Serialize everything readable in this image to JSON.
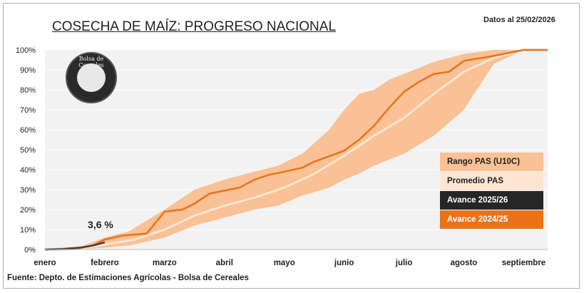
{
  "header": {
    "title": "COSECHA DE MAÍZ: PROGRESO NACIONAL",
    "date": "Datos al 25/02/2026"
  },
  "footer": {
    "source": "Fuente: Depto. de Estimaciones Agrícolas - Bolsa de Cereales"
  },
  "logo": {
    "text": "Bolsa de Cereales"
  },
  "chart_data": {
    "type": "area",
    "x_unit": "month (0 = enero)",
    "xlim": [
      0,
      8.4
    ],
    "ylim": [
      0,
      100
    ],
    "yticks": [
      "0%",
      "10%",
      "20%",
      "30%",
      "40%",
      "50%",
      "60%",
      "70%",
      "80%",
      "90%",
      "100%"
    ],
    "xticks": [
      {
        "label": "enero",
        "x": 0
      },
      {
        "label": "febrero",
        "x": 1
      },
      {
        "label": "marzo",
        "x": 2
      },
      {
        "label": "abril",
        "x": 3
      },
      {
        "label": "mayo",
        "x": 4
      },
      {
        "label": "junio",
        "x": 5
      },
      {
        "label": "julio",
        "x": 6
      },
      {
        "label": "agosto",
        "x": 7
      },
      {
        "label": "septiembre",
        "x": 8
      }
    ],
    "grid": "horizontal",
    "legend_position": "right",
    "annotation": {
      "text": "3,6 %",
      "x": 1.0,
      "y": 3.6
    },
    "colors": {
      "range": "#f9c195",
      "average": "#fde5d2",
      "current": "#404040",
      "previous": "#e8731a",
      "plot_bg": "#f2f2f2"
    },
    "range_band": {
      "name": "Rango PAS (U10C)",
      "x": [
        0,
        0.6,
        1,
        1.4,
        2,
        2.5,
        3,
        3.5,
        3.9,
        4.3,
        4.75,
        5,
        5.25,
        5.5,
        5.75,
        6,
        6.5,
        7,
        7.5,
        8,
        8.4
      ],
      "upper": [
        0.5,
        1.5,
        6,
        9,
        20,
        30,
        35,
        39,
        42,
        48,
        60,
        70,
        78,
        80,
        85,
        88,
        94,
        98,
        100,
        100,
        100
      ],
      "lower": [
        0,
        0,
        1,
        2,
        6,
        12,
        16,
        20,
        22,
        27,
        31,
        35,
        38,
        42,
        45,
        48,
        57,
        70,
        93,
        100,
        100
      ]
    },
    "series": [
      {
        "name": "Promedio PAS",
        "x": [
          0,
          0.6,
          1,
          1.5,
          2,
          2.5,
          3,
          3.5,
          4,
          4.5,
          5,
          5.5,
          6,
          6.5,
          7,
          7.5,
          8,
          8.4
        ],
        "values": [
          0,
          0.5,
          2.5,
          5,
          10,
          17,
          22,
          26,
          31,
          38,
          47,
          57,
          66,
          78,
          89,
          96,
          100,
          100
        ]
      },
      {
        "name": "Avance 2025/26",
        "x": [
          0,
          0.3,
          0.6,
          0.8,
          1.0
        ],
        "values": [
          0,
          0.3,
          1.0,
          2.0,
          3.6
        ]
      },
      {
        "name": "Avance 2024/25",
        "x": [
          0,
          0.5,
          0.8,
          1,
          1.3,
          1.7,
          2,
          2.3,
          2.5,
          2.75,
          3,
          3.25,
          3.5,
          3.75,
          4,
          4.3,
          4.5,
          5,
          5.25,
          5.5,
          5.75,
          6,
          6.25,
          6.5,
          6.75,
          7,
          7.5,
          8,
          8.4
        ],
        "values": [
          0,
          0.2,
          2,
          5,
          7,
          8,
          19,
          20,
          23,
          28,
          29.5,
          31,
          35,
          37.5,
          39,
          41,
          44,
          49.5,
          55,
          62,
          71,
          79,
          84,
          88,
          89,
          94.5,
          97,
          100,
          100
        ]
      }
    ]
  }
}
